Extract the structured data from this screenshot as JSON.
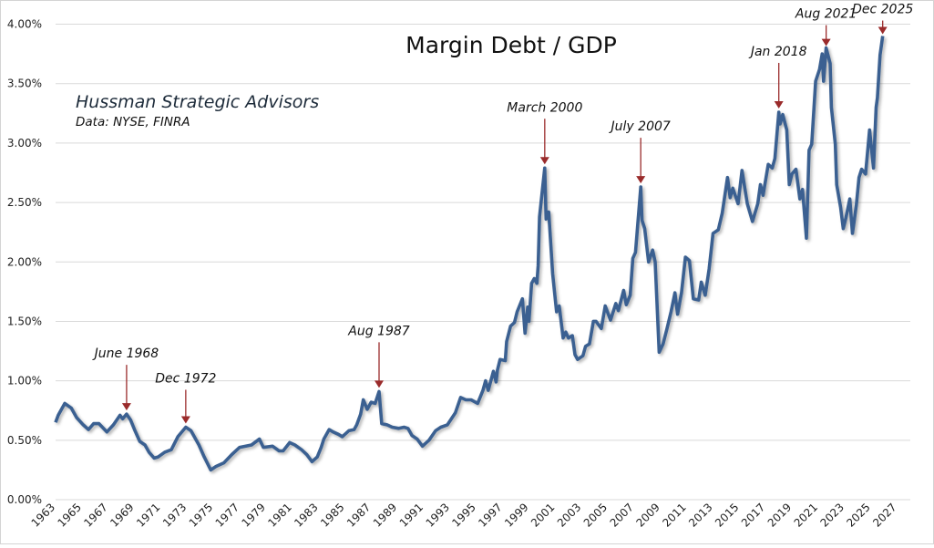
{
  "chart_data": {
    "type": "line",
    "title": "Margin Debt / GDP",
    "source_lines": [
      "Hussman Strategic Advisors",
      "Data: NYSE, FINRA"
    ],
    "xlabel": "",
    "ylabel": "",
    "xlim": [
      1963,
      2028
    ],
    "ylim": [
      0,
      4
    ],
    "x_ticks": [
      "1963",
      "1965",
      "1967",
      "1969",
      "1971",
      "1973",
      "1975",
      "1977",
      "1979",
      "1981",
      "1983",
      "1985",
      "1987",
      "1989",
      "1991",
      "1993",
      "1995",
      "1997",
      "1999",
      "2001",
      "2003",
      "2005",
      "2007",
      "2009",
      "2011",
      "2013",
      "2015",
      "2017",
      "2019",
      "2021",
      "2023",
      "2025",
      "2027"
    ],
    "y_ticks": [
      "0.00%",
      "0.50%",
      "1.00%",
      "1.50%",
      "2.00%",
      "2.50%",
      "3.00%",
      "3.50%",
      "4.00%"
    ],
    "y_tick_values": [
      0,
      0.5,
      1,
      1.5,
      2,
      2.5,
      3,
      3.5,
      4
    ],
    "grid": "horizontal",
    "line_color": "#3b6191",
    "arrow_color": "#9a2b2b",
    "series": [
      {
        "x": [
          1963.0,
          1963.2,
          1963.7,
          1964.2,
          1964.6,
          1965.1,
          1965.5,
          1965.9,
          1966.3,
          1966.9,
          1967.4,
          1967.9,
          1968.1,
          1968.4,
          1968.7,
          1969.0,
          1969.4,
          1969.8,
          1970.1,
          1970.5,
          1970.8,
          1971.3,
          1971.8,
          1972.3,
          1972.9,
          1973.3,
          1973.9,
          1974.3,
          1974.8,
          1975.2,
          1975.8,
          1976.4,
          1977.0,
          1977.9,
          1978.5,
          1978.8,
          1979.5,
          1980.0,
          1980.3,
          1980.8,
          1981.2,
          1981.7,
          1982.1,
          1982.5,
          1982.9,
          1983.2,
          1983.4,
          1983.8,
          1984.1,
          1984.5,
          1984.8,
          1985.3,
          1985.7,
          1985.9,
          1986.2,
          1986.4,
          1986.7,
          1987.0,
          1987.3,
          1987.6,
          1987.8,
          1988.2,
          1988.6,
          1989.1,
          1989.5,
          1989.8,
          1990.1,
          1990.5,
          1990.9,
          1991.4,
          1991.9,
          1992.3,
          1992.8,
          1993.4,
          1993.8,
          1994.2,
          1994.6,
          1995.1,
          1995.5,
          1995.7,
          1995.9,
          1996.3,
          1996.5,
          1996.6,
          1996.8,
          1997.2,
          1997.3,
          1997.6,
          1997.9,
          1998.1,
          1998.5,
          1998.7,
          1998.9,
          1999.0,
          1999.2,
          1999.4,
          1999.6,
          1999.7,
          1999.8,
          2000.2,
          2000.3,
          2000.5,
          2000.8,
          2001.1,
          2001.3,
          2001.6,
          2001.8,
          2002.0,
          2002.3,
          2002.5,
          2002.7,
          2003.1,
          2003.3,
          2003.6,
          2003.9,
          2004.1,
          2004.5,
          2004.8,
          2005.2,
          2005.6,
          2005.8,
          2006.2,
          2006.4,
          2006.7,
          2006.9,
          2007.1,
          2007.5,
          2007.6,
          2007.8,
          2008.1,
          2008.4,
          2008.6,
          2008.9,
          2009.2,
          2009.5,
          2009.8,
          2010.1,
          2010.3,
          2010.6,
          2010.9,
          2011.2,
          2011.5,
          2011.9,
          2012.1,
          2012.4,
          2012.7,
          2013.0,
          2013.4,
          2013.7,
          2014.1,
          2014.3,
          2014.5,
          2014.9,
          2015.2,
          2015.6,
          2016.0,
          2016.4,
          2016.6,
          2016.8,
          2017.2,
          2017.5,
          2017.7,
          2018.0,
          2018.1,
          2018.3,
          2018.6,
          2018.8,
          2019.0,
          2019.3,
          2019.6,
          2019.8,
          2020.1,
          2020.3,
          2020.5,
          2020.8,
          2021.1,
          2021.3,
          2021.4,
          2021.6,
          2021.9,
          2022.0,
          2022.3,
          2022.4,
          2022.7,
          2022.9,
          2023.1,
          2023.4,
          2023.6,
          2023.9,
          2024.1,
          2024.3,
          2024.6,
          2024.9,
          2025.2,
          2025.4,
          2025.5,
          2025.7,
          2025.9
        ],
        "values": [
          0.65,
          0.71,
          0.81,
          0.77,
          0.69,
          0.63,
          0.59,
          0.64,
          0.64,
          0.57,
          0.63,
          0.71,
          0.68,
          0.72,
          0.67,
          0.59,
          0.49,
          0.46,
          0.4,
          0.35,
          0.36,
          0.4,
          0.42,
          0.53,
          0.61,
          0.58,
          0.46,
          0.36,
          0.25,
          0.28,
          0.31,
          0.38,
          0.44,
          0.46,
          0.51,
          0.44,
          0.45,
          0.41,
          0.41,
          0.48,
          0.46,
          0.42,
          0.38,
          0.32,
          0.36,
          0.44,
          0.51,
          0.59,
          0.57,
          0.55,
          0.53,
          0.58,
          0.59,
          0.63,
          0.72,
          0.84,
          0.76,
          0.82,
          0.81,
          0.91,
          0.64,
          0.63,
          0.61,
          0.6,
          0.61,
          0.6,
          0.54,
          0.51,
          0.45,
          0.5,
          0.58,
          0.61,
          0.63,
          0.73,
          0.86,
          0.84,
          0.84,
          0.81,
          0.92,
          1.0,
          0.92,
          1.08,
          0.99,
          1.09,
          1.18,
          1.17,
          1.33,
          1.46,
          1.49,
          1.58,
          1.69,
          1.4,
          1.62,
          1.5,
          1.82,
          1.86,
          1.82,
          1.97,
          2.38,
          2.79,
          2.36,
          2.42,
          1.9,
          1.58,
          1.63,
          1.36,
          1.41,
          1.36,
          1.38,
          1.22,
          1.18,
          1.21,
          1.29,
          1.31,
          1.5,
          1.5,
          1.44,
          1.63,
          1.51,
          1.65,
          1.59,
          1.76,
          1.64,
          1.72,
          2.03,
          2.08,
          2.63,
          2.35,
          2.28,
          2.0,
          2.1,
          2.0,
          1.24,
          1.31,
          1.44,
          1.58,
          1.74,
          1.56,
          1.74,
          2.04,
          2.01,
          1.69,
          1.68,
          1.83,
          1.72,
          1.94,
          2.24,
          2.27,
          2.41,
          2.71,
          2.54,
          2.62,
          2.49,
          2.77,
          2.49,
          2.34,
          2.49,
          2.65,
          2.56,
          2.82,
          2.79,
          2.87,
          3.26,
          3.16,
          3.24,
          3.11,
          2.65,
          2.74,
          2.78,
          2.53,
          2.61,
          2.2,
          2.94,
          2.99,
          3.52,
          3.62,
          3.75,
          3.52,
          3.8,
          3.67,
          3.3,
          2.99,
          2.65,
          2.46,
          2.28,
          2.37,
          2.53,
          2.24,
          2.48,
          2.71,
          2.78,
          2.74,
          3.11,
          2.79,
          3.3,
          3.38,
          3.74,
          3.9
        ]
      }
    ],
    "annotations": [
      {
        "label": "June 1968",
        "x": 1968.4,
        "y": 0.72
      },
      {
        "label": "Dec 1972",
        "x": 1972.9,
        "y": 0.61
      },
      {
        "label": "Aug 1987",
        "x": 1987.6,
        "y": 0.91
      },
      {
        "label": "March 2000",
        "x": 2000.2,
        "y": 2.79
      },
      {
        "label": "July 2007",
        "x": 2007.5,
        "y": 2.63
      },
      {
        "label": "Jan 2018",
        "x": 2018.0,
        "y": 3.26
      },
      {
        "label": "Aug 2021",
        "x": 2021.6,
        "y": 3.8
      },
      {
        "label": "Dec 2025",
        "x": 2025.9,
        "y": 3.9
      }
    ]
  }
}
